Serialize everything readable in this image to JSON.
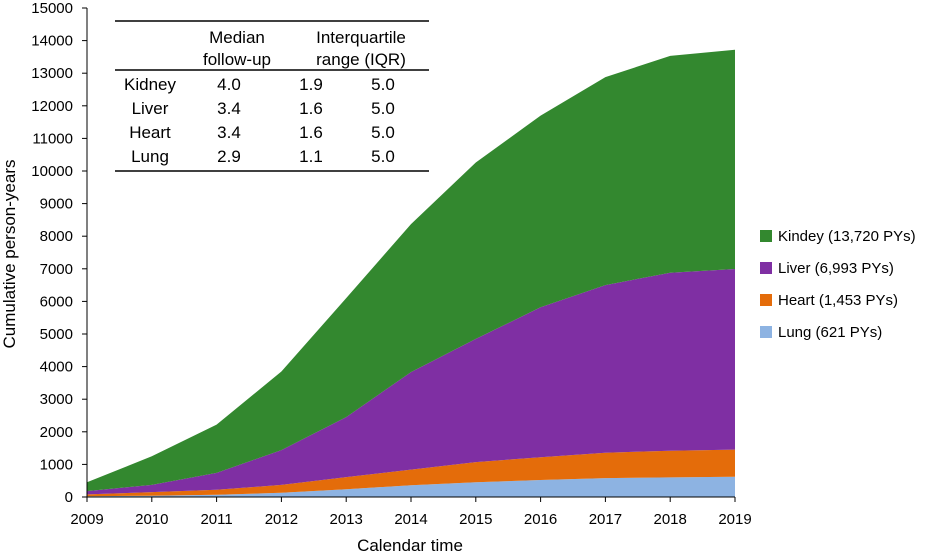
{
  "chart_data": {
    "type": "area",
    "stacked": true,
    "title": "",
    "xlabel": "Calendar time",
    "ylabel": "Cumulative person-years",
    "x": [
      2009,
      2010,
      2011,
      2012,
      2013,
      2014,
      2015,
      2016,
      2017,
      2018,
      2019
    ],
    "ylim": [
      0,
      15000
    ],
    "yticks": [
      0,
      1000,
      2000,
      3000,
      4000,
      5000,
      6000,
      7000,
      8000,
      9000,
      10000,
      11000,
      12000,
      13000,
      14000,
      15000
    ],
    "grid": false,
    "legend_position": "right",
    "series": [
      {
        "name": "Lung (621 PYs)",
        "color": "#8db3e2",
        "values": [
          20,
          40,
          70,
          130,
          240,
          360,
          450,
          520,
          580,
          600,
          621
        ]
      },
      {
        "name": "Heart (1,453 PYs)",
        "color": "#e46c0a",
        "values": [
          60,
          110,
          150,
          240,
          370,
          480,
          620,
          700,
          780,
          820,
          832
        ]
      },
      {
        "name": "Liver (6,993 PYs)",
        "color": "#7f2fa3",
        "values": [
          100,
          220,
          520,
          1070,
          1840,
          2990,
          3780,
          4600,
          5140,
          5460,
          5540
        ]
      },
      {
        "name": "Kindey (13,720 PYs)",
        "color": "#33882f",
        "values": [
          270,
          880,
          1480,
          2410,
          3650,
          4540,
          5410,
          5880,
          6380,
          6650,
          6727
        ]
      }
    ],
    "legend_order": [
      "Kindey (13,720 PYs)",
      "Liver (6,993 PYs)",
      "Heart (1,453 PYs)",
      "Lung (621 PYs)"
    ],
    "inset_table": {
      "headers": [
        {
          "line1": "",
          "line2": ""
        },
        {
          "line1": "Median",
          "line2": "follow-up"
        },
        {
          "line1": "Interquartile",
          "line2": "range (IQR)"
        }
      ],
      "rows": [
        {
          "organ": "Kidney",
          "median": "4.0",
          "q1": "1.9",
          "q3": "5.0"
        },
        {
          "organ": "Liver",
          "median": "3.4",
          "q1": "1.6",
          "q3": "5.0"
        },
        {
          "organ": "Heart",
          "median": "3.4",
          "q1": "1.6",
          "q3": "5.0"
        },
        {
          "organ": "Lung",
          "median": "2.9",
          "q1": "1.1",
          "q3": "5.0"
        }
      ]
    }
  }
}
